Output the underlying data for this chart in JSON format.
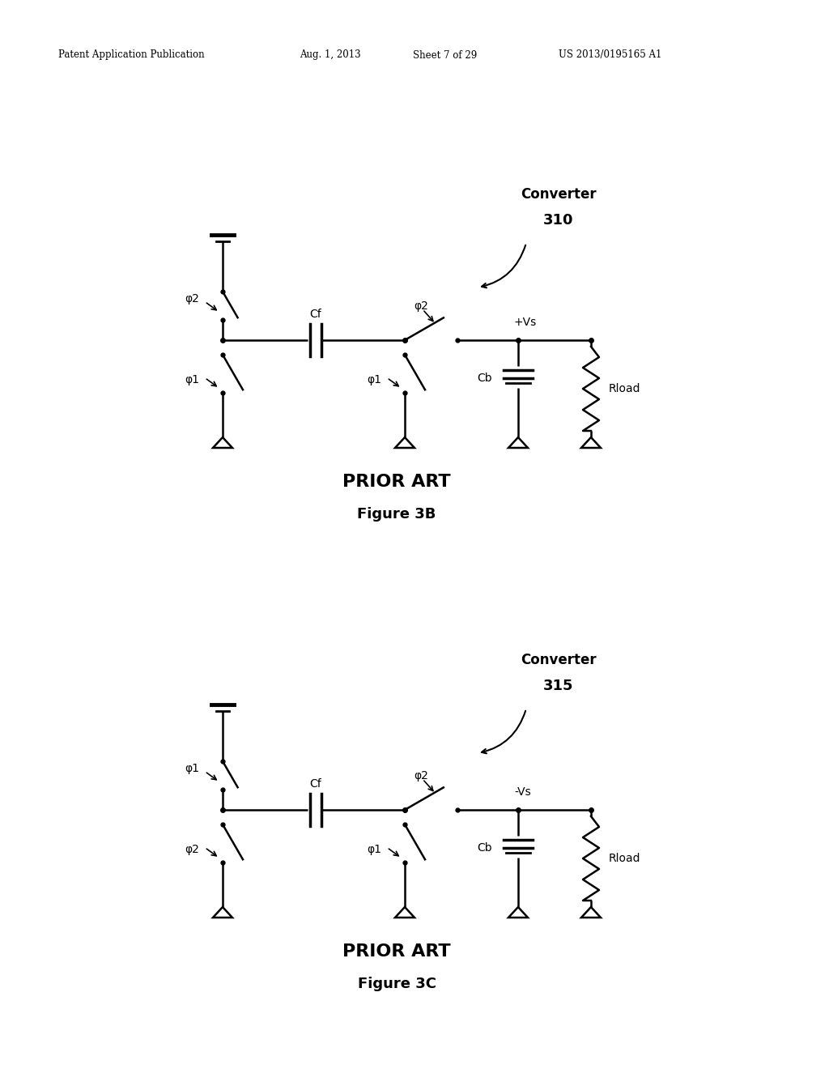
{
  "bg_color": "#ffffff",
  "header_text": "Patent Application Publication",
  "header_date": "Aug. 1, 2013",
  "header_sheet": "Sheet 7 of 29",
  "header_patent": "US 2013/0195165 A1",
  "fig3b": {
    "title_bold": "PRIOR ART",
    "title_fig": "Figure 3B",
    "converter_label_line1": "Converter",
    "converter_label_line2": "310",
    "phi2_top_label": "φ2",
    "phi1_bot_label": "φ1",
    "cf_label": "Cf",
    "phi2_mid_label": "φ2",
    "phi1_mid2_label": "φ1",
    "vs_label": "+Vs",
    "cb_label": "Cb",
    "rload_label": "Rload"
  },
  "fig3c": {
    "title_bold": "PRIOR ART",
    "title_fig": "Figure 3C",
    "converter_label_line1": "Converter",
    "converter_label_line2": "315",
    "phi1_top_label": "φ1",
    "phi2_bot_label": "φ2",
    "cf_label": "Cf",
    "phi2_mid_label": "φ2",
    "phi1_mid2_label": "φ1",
    "vs_label": "-Vs",
    "cb_label": "Cb",
    "rload_label": "Rload"
  }
}
